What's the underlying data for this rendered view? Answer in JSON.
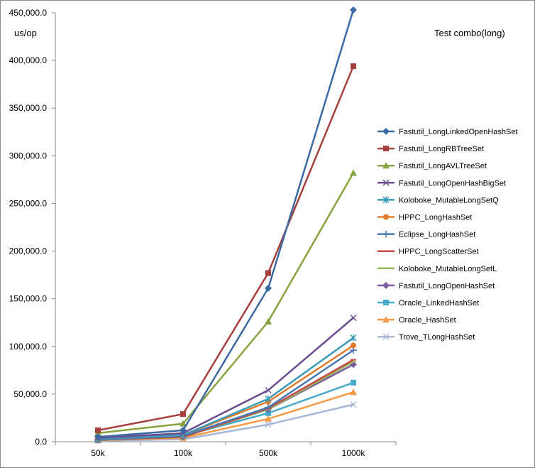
{
  "chart_data": {
    "type": "line",
    "title": "Test combo(long)",
    "ylabel": "us/op",
    "xlabel": "",
    "categories": [
      "50k",
      "100k",
      "500k",
      "1000k"
    ],
    "ylim": [
      0,
      450000
    ],
    "yticks": [
      0,
      50000,
      100000,
      150000,
      200000,
      250000,
      300000,
      350000,
      400000,
      450000
    ],
    "ytick_labels": [
      "0.0",
      "50,000.0",
      "100,000.0",
      "150,000.0",
      "200,000.0",
      "250,000.0",
      "300,000.0",
      "350,000.0",
      "400,000.0",
      "450,000.0"
    ],
    "grid": false,
    "legend": "right",
    "series": [
      {
        "name": "Fastutil_LongLinkedOpenHashSet",
        "color": "#3b6aa3",
        "marker": "diamond",
        "values": [
          5000,
          12000,
          161000,
          453000
        ]
      },
      {
        "name": "Fastutil_LongRBTreeSet",
        "color": "#a6403d",
        "marker": "square",
        "values": [
          12000,
          29000,
          177000,
          394000
        ]
      },
      {
        "name": "Fastutil_LongAVLTreeSet",
        "color": "#86a33f",
        "marker": "triangle",
        "values": [
          9000,
          19000,
          126000,
          282000
        ]
      },
      {
        "name": "Fastutil_LongOpenHashBigSet",
        "color": "#6a4c8f",
        "marker": "x",
        "values": [
          4000,
          9000,
          54000,
          130000
        ]
      },
      {
        "name": "Koloboke_MutableLongSetQ",
        "color": "#3a9ab5",
        "marker": "star",
        "values": [
          3000,
          7000,
          45000,
          109000
        ]
      },
      {
        "name": "HPPC_LongHashSet",
        "color": "#e07b2e",
        "marker": "circle",
        "values": [
          3000,
          7000,
          42000,
          101000
        ]
      },
      {
        "name": "Eclipse_LongHashSet",
        "color": "#4a78b5",
        "marker": "plus",
        "values": [
          2000,
          6000,
          36000,
          96000
        ]
      },
      {
        "name": "HPPC_LongScatterSet",
        "color": "#c44b47",
        "marker": "dash",
        "values": [
          2000,
          5000,
          35000,
          86000
        ]
      },
      {
        "name": "Koloboke_MutableLongSetL",
        "color": "#98b85a",
        "marker": "dash",
        "values": [
          2000,
          5000,
          34000,
          84000
        ]
      },
      {
        "name": "Fastutil_LongOpenHashSet",
        "color": "#7c5aa0",
        "marker": "diamond",
        "values": [
          2000,
          5000,
          34000,
          81000
        ]
      },
      {
        "name": "Oracle_LinkedHashSet",
        "color": "#45abc8",
        "marker": "square",
        "values": [
          2000,
          6000,
          30000,
          62000
        ]
      },
      {
        "name": "Oracle_HashSet",
        "color": "#f79a45",
        "marker": "triangle",
        "values": [
          1500,
          4000,
          24000,
          52000
        ]
      },
      {
        "name": "Trove_TLongHashSet",
        "color": "#a5b9d6",
        "marker": "x",
        "values": [
          1000,
          2500,
          18000,
          39000
        ]
      }
    ]
  }
}
